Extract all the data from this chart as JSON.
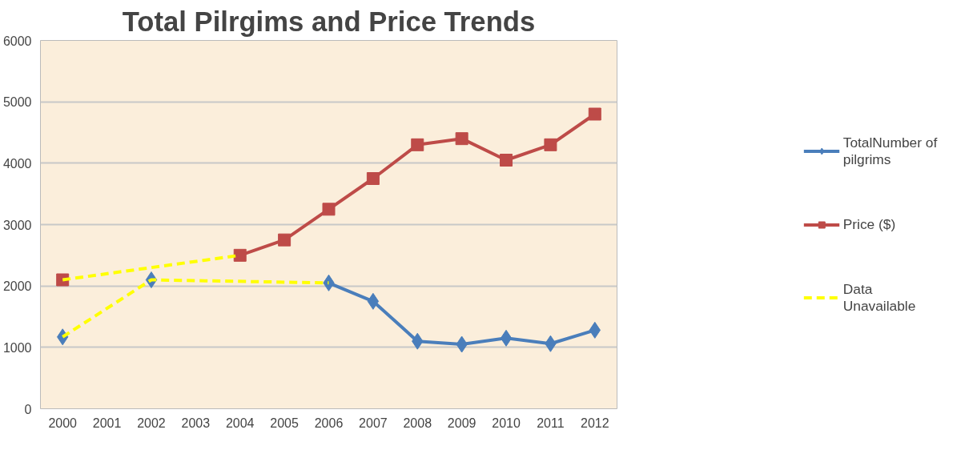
{
  "chart_data": {
    "type": "line",
    "title": "Total Pilrgims and Price Trends",
    "x": [
      2000,
      2001,
      2002,
      2003,
      2004,
      2005,
      2006,
      2007,
      2008,
      2009,
      2010,
      2011,
      2012
    ],
    "xlim": [
      1999.5,
      2012.5
    ],
    "xticks": [
      2000,
      2001,
      2002,
      2003,
      2004,
      2005,
      2006,
      2007,
      2008,
      2009,
      2010,
      2011,
      2012
    ],
    "ylim": [
      0,
      6000
    ],
    "yticks": [
      0,
      1000,
      2000,
      3000,
      4000,
      5000,
      6000
    ],
    "grid": "y",
    "legend": "right",
    "series": [
      {
        "name": "TotalNumber of pilgrims",
        "color": "#4a7ebb",
        "marker": "diamond",
        "line_style": "solid",
        "values": [
          1170,
          null,
          2100,
          null,
          null,
          null,
          2050,
          1750,
          1100,
          1050,
          1150,
          1060,
          1280
        ]
      },
      {
        "name": "Price ($)",
        "color": "#be4b48",
        "marker": "square",
        "line_style": "solid",
        "values": [
          2100,
          null,
          null,
          null,
          2500,
          2750,
          3250,
          3750,
          4300,
          4400,
          4050,
          4300,
          4800
        ]
      },
      {
        "name": "Data Unavailable",
        "color": "#ffff00",
        "marker": "none",
        "line_style": "dashed",
        "x": [
          2000,
          2002,
          2006
        ],
        "values": [
          1170,
          2100,
          2050
        ]
      },
      {
        "color": "#ffff00",
        "marker": "none",
        "line_style": "dashed",
        "x": [
          2000,
          2004
        ],
        "values": [
          2100,
          2500
        ]
      }
    ]
  }
}
